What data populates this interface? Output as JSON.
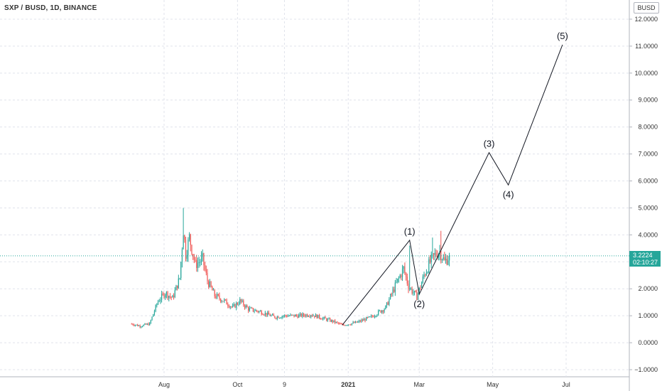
{
  "header": {
    "title": "SXP / BUSD, 1D, BINANCE",
    "currency": "BUSD"
  },
  "last_price": {
    "value": 3.2224,
    "label": "3.2224",
    "countdown": "02:10:27"
  },
  "colors": {
    "up": "#26a69a",
    "down": "#ef5350",
    "line": "#131722",
    "grid": "#e0e3eb"
  },
  "chart_data": {
    "type": "candlestick",
    "title": "SXP / BUSD, 1D, BINANCE",
    "y_axis": {
      "range": [
        -1.0,
        12.5
      ],
      "ticks": [
        "−1.0000",
        "0.0000",
        "1.0000",
        "2.0000",
        "3.0000",
        "4.0000",
        "5.0000",
        "6.0000",
        "7.0000",
        "8.0000",
        "9.0000",
        "10.0000",
        "11.0000",
        "12.0000"
      ],
      "tick_values": [
        -1,
        0,
        1,
        2,
        3,
        4,
        5,
        6,
        7,
        8,
        9,
        10,
        11,
        12
      ]
    },
    "x_axis": {
      "tick_labels": [
        "Aug",
        "Oct",
        "9",
        "2021",
        "Mar",
        "May",
        "Jul"
      ],
      "tick_dates": [
        "2020-08-01",
        "2020-10-01",
        "2020-11-09",
        "2021-01-01",
        "2021-03-01",
        "2021-05-01",
        "2021-07-01"
      ]
    },
    "price_path": [
      [
        "2020-07-05",
        0.7
      ],
      [
        "2020-07-12",
        0.62
      ],
      [
        "2020-07-20",
        0.7
      ],
      [
        "2020-07-27",
        1.55
      ],
      [
        "2020-08-02",
        1.85
      ],
      [
        "2020-08-08",
        1.65
      ],
      [
        "2020-08-14",
        2.4
      ],
      [
        "2020-08-17",
        4.2
      ],
      [
        "2020-08-19",
        3.3
      ],
      [
        "2020-08-22",
        3.9
      ],
      [
        "2020-08-27",
        2.9
      ],
      [
        "2020-09-02",
        3.1
      ],
      [
        "2020-09-06",
        2.3
      ],
      [
        "2020-09-12",
        1.75
      ],
      [
        "2020-09-20",
        1.55
      ],
      [
        "2020-09-27",
        1.3
      ],
      [
        "2020-10-03",
        1.55
      ],
      [
        "2020-10-10",
        1.25
      ],
      [
        "2020-10-20",
        1.15
      ],
      [
        "2020-11-01",
        0.95
      ],
      [
        "2020-11-09",
        1.0
      ],
      [
        "2020-11-20",
        1.0
      ],
      [
        "2020-12-01",
        1.05
      ],
      [
        "2020-12-10",
        0.92
      ],
      [
        "2020-12-20",
        0.78
      ],
      [
        "2020-12-27",
        0.65
      ],
      [
        "2021-01-08",
        0.75
      ],
      [
        "2021-01-20",
        0.95
      ],
      [
        "2021-02-01",
        1.3
      ],
      [
        "2021-02-10",
        2.2
      ],
      [
        "2021-02-16",
        2.75
      ],
      [
        "2021-02-20",
        2.1
      ],
      [
        "2021-02-27",
        1.7
      ],
      [
        "2021-03-05",
        2.5
      ],
      [
        "2021-03-10",
        3.0
      ],
      [
        "2021-03-14",
        3.25
      ],
      [
        "2021-03-18",
        3.4
      ],
      [
        "2021-03-22",
        3.0
      ],
      [
        "2021-03-26",
        3.22
      ]
    ],
    "price_extremes": [
      [
        "2020-08-17",
        5.0
      ],
      [
        "2020-08-22",
        4.1
      ],
      [
        "2021-02-21",
        3.6
      ],
      [
        "2021-03-12",
        3.9
      ],
      [
        "2021-03-19",
        4.15
      ],
      [
        "2021-02-28",
        1.8
      ]
    ],
    "elliott_wave": {
      "points": [
        {
          "label": "",
          "date": "2020-12-27",
          "value": 0.65
        },
        {
          "label": "(1)",
          "date": "2021-02-21",
          "value": 3.8
        },
        {
          "label": "(2)",
          "date": "2021-03-01",
          "value": 1.8
        },
        {
          "label": "(3)",
          "date": "2021-04-28",
          "value": 7.05
        },
        {
          "label": "(4)",
          "date": "2021-05-14",
          "value": 5.85
        },
        {
          "label": "(5)",
          "date": "2021-06-28",
          "value": 11.05
        }
      ]
    },
    "last_price_line": 3.2224,
    "grid": true
  }
}
